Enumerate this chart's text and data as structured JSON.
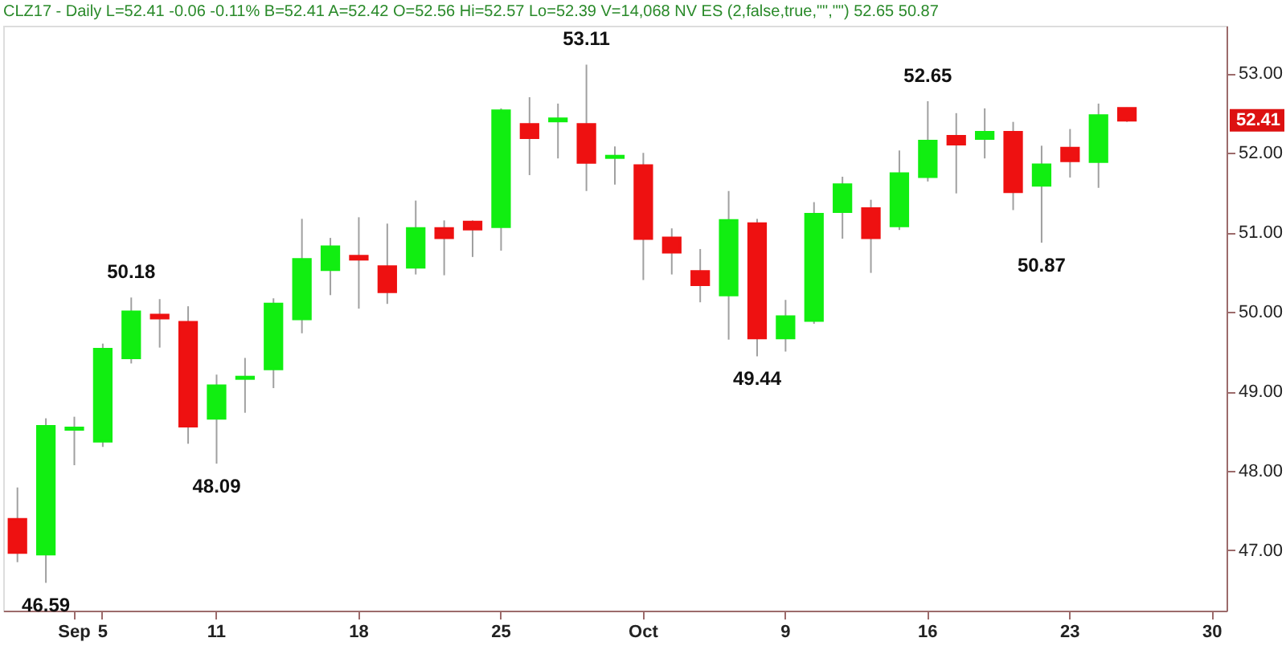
{
  "chart_data": {
    "type": "candlestick",
    "title": "CLZ17 - Daily L=52.41 -0.06 -0.11% B=52.41 A=52.42 O=52.56 Hi=52.57 Lo=52.39 V=14,068 NV ES (2,false,true,\"\",\"\") 52.65 50.87",
    "categories": [
      null,
      null,
      "Sep",
      "5",
      null,
      null,
      null,
      "11",
      null,
      null,
      null,
      null,
      "18",
      null,
      null,
      null,
      null,
      "25",
      null,
      null,
      null,
      null,
      "Oct",
      null,
      null,
      null,
      null,
      "9",
      null,
      null,
      null,
      null,
      "16",
      null,
      null,
      null,
      null,
      "23",
      null,
      null,
      null,
      null,
      "30"
    ],
    "ohlc": [
      [
        47.39,
        47.79,
        46.85,
        46.97
      ],
      [
        46.95,
        48.66,
        46.59,
        48.56
      ],
      [
        48.52,
        48.68,
        48.07,
        48.54
      ],
      [
        48.37,
        49.6,
        48.3,
        49.53
      ],
      [
        49.42,
        50.18,
        49.35,
        50.0
      ],
      [
        49.96,
        50.16,
        49.55,
        49.92
      ],
      [
        49.87,
        50.07,
        48.34,
        48.56
      ],
      [
        48.66,
        49.21,
        48.09,
        49.07
      ],
      [
        49.16,
        49.42,
        48.73,
        49.18
      ],
      [
        49.28,
        50.17,
        49.04,
        50.1
      ],
      [
        49.91,
        51.17,
        49.73,
        50.66
      ],
      [
        50.53,
        50.93,
        50.21,
        50.82
      ],
      [
        50.7,
        51.19,
        50.04,
        50.66
      ],
      [
        50.57,
        51.11,
        50.1,
        50.25
      ],
      [
        50.56,
        51.4,
        50.47,
        51.05
      ],
      [
        51.05,
        51.15,
        50.46,
        50.93
      ],
      [
        51.13,
        51.15,
        50.69,
        51.04
      ],
      [
        51.07,
        52.56,
        50.77,
        52.53
      ],
      [
        52.36,
        52.7,
        51.72,
        52.19
      ],
      [
        52.4,
        52.62,
        51.93,
        52.43
      ],
      [
        52.36,
        53.11,
        51.52,
        51.88
      ],
      [
        51.94,
        52.08,
        51.6,
        51.96
      ],
      [
        51.84,
        52.0,
        50.4,
        50.92
      ],
      [
        50.93,
        51.05,
        50.47,
        50.75
      ],
      [
        50.51,
        50.79,
        50.12,
        50.34
      ],
      [
        50.21,
        51.52,
        49.65,
        51.15
      ],
      [
        51.11,
        51.17,
        49.44,
        49.67
      ],
      [
        49.67,
        50.15,
        49.5,
        49.94
      ],
      [
        49.89,
        51.38,
        49.85,
        51.23
      ],
      [
        51.26,
        51.7,
        50.92,
        51.6
      ],
      [
        51.3,
        51.41,
        50.49,
        50.93
      ],
      [
        51.08,
        52.03,
        51.03,
        51.74
      ],
      [
        51.7,
        52.65,
        51.64,
        52.15
      ],
      [
        52.21,
        52.5,
        51.49,
        52.11
      ],
      [
        52.18,
        52.56,
        51.93,
        52.26
      ],
      [
        52.26,
        52.39,
        51.28,
        51.51
      ],
      [
        51.59,
        52.09,
        50.87,
        51.85
      ],
      [
        52.06,
        52.3,
        51.69,
        51.9
      ],
      [
        51.89,
        52.62,
        51.56,
        52.47
      ],
      [
        52.56,
        52.57,
        52.39,
        52.41
      ],
      null,
      null,
      null
    ],
    "colors": [
      "#ee1111",
      "#11ee11",
      "#11ee11",
      "#11ee11",
      "#11ee11",
      "#ee1111",
      "#ee1111",
      "#11ee11",
      "#11ee11",
      "#11ee11",
      "#11ee11",
      "#11ee11",
      "#ee1111",
      "#ee1111",
      "#11ee11",
      "#ee1111",
      "#ee1111",
      "#11ee11",
      "#ee1111",
      "#11ee11",
      "#ee1111",
      "#11ee11",
      "#ee1111",
      "#ee1111",
      "#ee1111",
      "#11ee11",
      "#ee1111",
      "#11ee11",
      "#11ee11",
      "#11ee11",
      "#ee1111",
      "#11ee11",
      "#11ee11",
      "#ee1111",
      "#11ee11",
      "#ee1111",
      "#11ee11",
      "#ee1111",
      "#11ee11",
      "#ee1111",
      null,
      null,
      null
    ],
    "ylim": [
      46.24,
      53.6
    ],
    "yticks": [
      {
        "value": 47,
        "label": "47.00"
      },
      {
        "value": 48,
        "label": "48.00"
      },
      {
        "value": 49,
        "label": "49.00"
      },
      {
        "value": 50,
        "label": "50.00"
      },
      {
        "value": 51,
        "label": "51.00"
      },
      {
        "value": 52,
        "label": "52.00"
      },
      {
        "value": 53,
        "label": "53.00"
      }
    ],
    "grid": false,
    "annotations": [
      {
        "text": "46.59",
        "y": 46.59
      },
      {
        "text": "50.18",
        "y": 50.18
      },
      {
        "text": "48.09",
        "y": 48.09
      },
      {
        "text": "53.11",
        "y": 53.11
      },
      {
        "text": "49.44",
        "y": 49.44
      },
      {
        "text": "52.65",
        "y": 52.65
      },
      {
        "text": "50.87",
        "y": 50.87
      },
      "52.41"
    ]
  }
}
